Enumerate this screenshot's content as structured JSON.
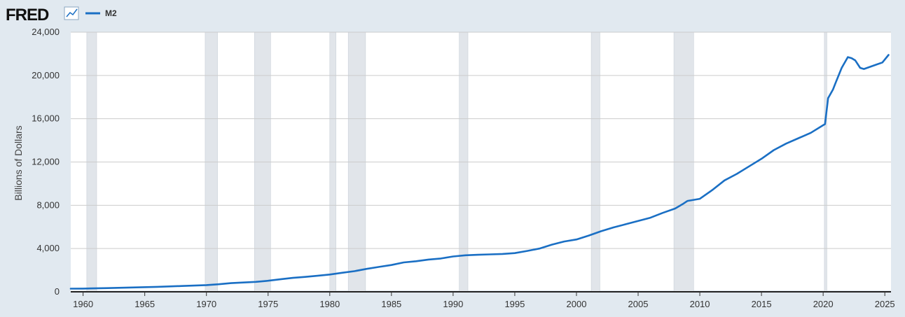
{
  "header": {
    "logo_text": "FRED",
    "logo_icon": "line-chart-icon"
  },
  "colors": {
    "series": "#1a6fc4",
    "recession": "#e1e5ea",
    "plot_bg": "#ffffff",
    "page_bg": "#e1e9f0",
    "grid": "#cccccc"
  },
  "chart_data": {
    "type": "line",
    "title": "",
    "xlabel": "",
    "ylabel": "Billions of Dollars",
    "xlim": [
      1959.0,
      2025.5
    ],
    "ylim": [
      0,
      24000
    ],
    "x_ticks": [
      1960,
      1965,
      1970,
      1975,
      1980,
      1985,
      1990,
      1995,
      2000,
      2005,
      2010,
      2015,
      2020,
      2025
    ],
    "x_tick_labels": [
      "1960",
      "1965",
      "1970",
      "1975",
      "1980",
      "1985",
      "1990",
      "1995",
      "2000",
      "2005",
      "2010",
      "2015",
      "2020",
      "2025"
    ],
    "y_ticks": [
      0,
      4000,
      8000,
      12000,
      16000,
      20000,
      24000
    ],
    "y_tick_labels": [
      "0",
      "4,000",
      "8,000",
      "12,000",
      "16,000",
      "20,000",
      "24,000"
    ],
    "grid": true,
    "legend_placement": "top-left",
    "recessions": [
      [
        1960.3,
        1961.1
      ],
      [
        1969.9,
        1970.9
      ],
      [
        1973.9,
        1975.2
      ],
      [
        1980.0,
        1980.5
      ],
      [
        1981.5,
        1982.9
      ],
      [
        1990.5,
        1991.2
      ],
      [
        2001.2,
        2001.9
      ],
      [
        2007.9,
        2009.5
      ],
      [
        2020.1,
        2020.3
      ]
    ],
    "series": [
      {
        "name": "M2",
        "x": [
          1959.0,
          1960.0,
          1962.0,
          1964.0,
          1966.0,
          1968.0,
          1970.0,
          1971.0,
          1972.0,
          1973.0,
          1974.0,
          1975.0,
          1976.0,
          1977.0,
          1978.0,
          1979.0,
          1980.0,
          1981.0,
          1982.0,
          1983.0,
          1984.0,
          1985.0,
          1986.0,
          1987.0,
          1988.0,
          1989.0,
          1990.0,
          1991.0,
          1992.0,
          1993.0,
          1994.0,
          1995.0,
          1996.0,
          1997.0,
          1998.0,
          1999.0,
          2000.0,
          2001.0,
          2002.0,
          2003.0,
          2004.0,
          2005.0,
          2006.0,
          2007.0,
          2008.0,
          2008.6,
          2009.0,
          2010.0,
          2011.0,
          2012.0,
          2013.0,
          2014.0,
          2015.0,
          2016.0,
          2017.0,
          2018.0,
          2019.0,
          2020.0,
          2020.15,
          2020.4,
          2020.8,
          2021.0,
          2021.5,
          2022.0,
          2022.3,
          2022.6,
          2023.0,
          2023.3,
          2023.8,
          2024.3,
          2024.8,
          2025.3
        ],
        "values": [
          290,
          300,
          340,
          400,
          460,
          540,
          620,
          700,
          800,
          860,
          920,
          1020,
          1160,
          1290,
          1380,
          1480,
          1600,
          1760,
          1910,
          2120,
          2300,
          2480,
          2720,
          2830,
          2980,
          3080,
          3270,
          3380,
          3420,
          3460,
          3500,
          3580,
          3780,
          4000,
          4360,
          4650,
          4840,
          5200,
          5600,
          5950,
          6250,
          6550,
          6850,
          7300,
          7700,
          8100,
          8400,
          8600,
          9400,
          10300,
          10900,
          11600,
          12300,
          13100,
          13700,
          14200,
          14700,
          15400,
          15500,
          17900,
          18700,
          19300,
          20700,
          21700,
          21600,
          21400,
          20700,
          20600,
          20800,
          21000,
          21200,
          21900
        ]
      }
    ]
  }
}
